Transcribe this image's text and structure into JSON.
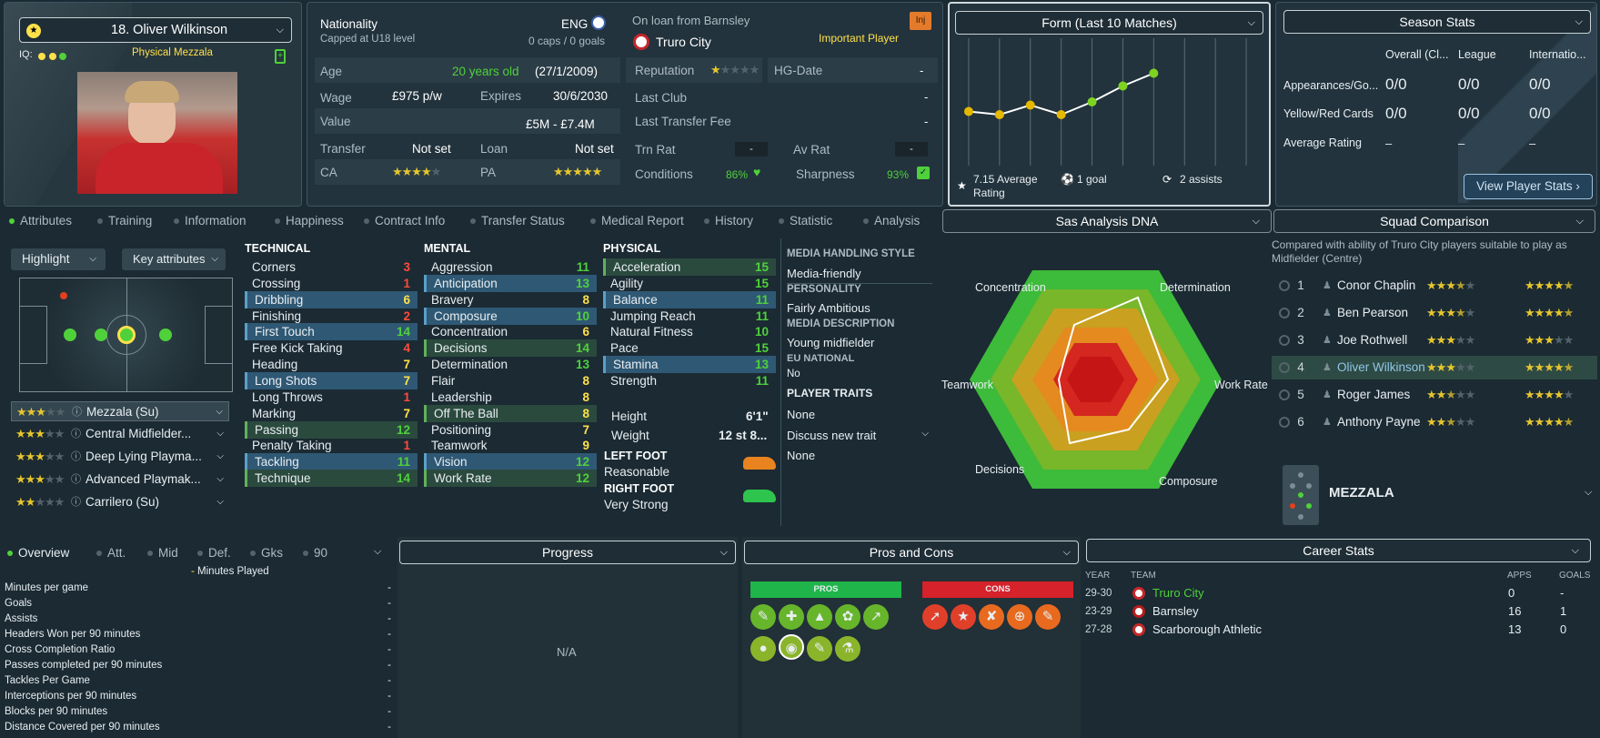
{
  "player": {
    "name": "18. Oliver Wilkinson",
    "iq_label": "IQ:",
    "role_desc": "Physical Mezzala"
  },
  "info": {
    "nationality_label": "Nationality",
    "capped": "Capped at U18 level",
    "nation": "ENG",
    "caps": "0 caps / 0 goals",
    "loan_text": "On loan from Barnsley",
    "inj": "Inj",
    "club": "Truro City",
    "importance": "Important Player",
    "age_label": "Age",
    "age": "20 years old",
    "dob": "(27/1/2009)",
    "reputation_label": "Reputation",
    "hg_label": "HG-Date",
    "hg_val": "-",
    "wage_label": "Wage",
    "wage": "£975 p/w",
    "expires_label": "Expires",
    "expires": "30/6/2030",
    "last_club_label": "Last Club",
    "last_club": "-",
    "value_label": "Value",
    "value": "£5M - £7.4M",
    "last_fee_label": "Last Transfer Fee",
    "last_fee": "-",
    "transfer_label": "Transfer",
    "transfer": "Not set",
    "loan_label": "Loan",
    "loan": "Not set",
    "trn_label": "Trn Rat",
    "trn": "-",
    "av_label": "Av Rat",
    "av": "-",
    "ca_label": "CA",
    "pa_label": "PA",
    "cond_label": "Conditions",
    "cond": "86%",
    "sharp_label": "Sharpness",
    "sharp": "93%"
  },
  "form": {
    "title": "Form (Last 10 Matches)",
    "avg": "7.15 Average Rating",
    "goals": "1 goal",
    "assists": "2 assists",
    "points": [
      6.85,
      6.8,
      6.95,
      6.8,
      7.0,
      7.25,
      7.45
    ]
  },
  "season": {
    "title": "Season Stats",
    "cols": [
      "Overall (Cl...",
      "League",
      "Internatio..."
    ],
    "rows": [
      {
        "label": "Appearances/Go...",
        "vals": [
          "0/0",
          "0/0",
          "0/0"
        ]
      },
      {
        "label": "Yellow/Red Cards",
        "vals": [
          "0/0",
          "0/0",
          "0/0"
        ]
      },
      {
        "label": "Average Rating",
        "vals": [
          "–",
          "–",
          "–"
        ]
      }
    ],
    "button": "View Player Stats"
  },
  "tabs": [
    "Attributes",
    "Training",
    "Information",
    "Happiness",
    "Contract Info",
    "Transfer Status",
    "Medical Report",
    "History",
    "Statistic",
    "Analysis"
  ],
  "left": {
    "highlight": "Highlight",
    "key_attr": "Key attributes",
    "roles": [
      "Mezzala (Su)",
      "Central Midfielder...",
      "Deep Lying Playma...",
      "Advanced Playmak...",
      "Carrilero (Su)"
    ]
  },
  "technical": {
    "title": "TECHNICAL",
    "items": [
      {
        "n": "Corners",
        "v": "3"
      },
      {
        "n": "Crossing",
        "v": "1"
      },
      {
        "n": "Dribbling",
        "v": "6"
      },
      {
        "n": "Finishing",
        "v": "2"
      },
      {
        "n": "First Touch",
        "v": "14"
      },
      {
        "n": "Free Kick Taking",
        "v": "4"
      },
      {
        "n": "Heading",
        "v": "7"
      },
      {
        "n": "Long Shots",
        "v": "7"
      },
      {
        "n": "Long Throws",
        "v": "1"
      },
      {
        "n": "Marking",
        "v": "7"
      },
      {
        "n": "Passing",
        "v": "12"
      },
      {
        "n": "Penalty Taking",
        "v": "1"
      },
      {
        "n": "Tackling",
        "v": "11"
      },
      {
        "n": "Technique",
        "v": "14"
      }
    ]
  },
  "mental": {
    "title": "MENTAL",
    "items": [
      {
        "n": "Aggression",
        "v": "11"
      },
      {
        "n": "Anticipation",
        "v": "13"
      },
      {
        "n": "Bravery",
        "v": "8"
      },
      {
        "n": "Composure",
        "v": "10"
      },
      {
        "n": "Concentration",
        "v": "6"
      },
      {
        "n": "Decisions",
        "v": "14"
      },
      {
        "n": "Determination",
        "v": "13"
      },
      {
        "n": "Flair",
        "v": "8"
      },
      {
        "n": "Leadership",
        "v": "8"
      },
      {
        "n": "Off The Ball",
        "v": "8"
      },
      {
        "n": "Positioning",
        "v": "7"
      },
      {
        "n": "Teamwork",
        "v": "9"
      },
      {
        "n": "Vision",
        "v": "12"
      },
      {
        "n": "Work Rate",
        "v": "12"
      }
    ]
  },
  "physical": {
    "title": "PHYSICAL",
    "items": [
      {
        "n": "Acceleration",
        "v": "15"
      },
      {
        "n": "Agility",
        "v": "15"
      },
      {
        "n": "Balance",
        "v": "11"
      },
      {
        "n": "Jumping Reach",
        "v": "11"
      },
      {
        "n": "Natural Fitness",
        "v": "10"
      },
      {
        "n": "Pace",
        "v": "15"
      },
      {
        "n": "Stamina",
        "v": "13"
      },
      {
        "n": "Strength",
        "v": "11"
      }
    ],
    "height_label": "Height",
    "height": "6'1\"",
    "weight_label": "Weight",
    "weight": "12 st 8...",
    "left_foot_label": "LEFT FOOT",
    "left_foot": "Reasonable",
    "right_foot_label": "RIGHT FOOT",
    "right_foot": "Very Strong"
  },
  "media": {
    "style_title": "MEDIA HANDLING STYLE",
    "style": "Media-friendly",
    "personality_title": "PERSONALITY",
    "personality": "Fairly Ambitious",
    "desc_title": "MEDIA DESCRIPTION",
    "desc": "Young midfielder",
    "eu_title": "EU NATIONAL",
    "eu": "No",
    "traits_title": "PLAYER TRAITS",
    "traits": "None",
    "discuss": "Discuss new trait",
    "discuss_val": "None"
  },
  "dna": {
    "title": "Sas Analysis DNA",
    "labels": {
      "concentration": "Concentration",
      "determination": "Determination",
      "teamwork": "Teamwork",
      "workrate": "Work Rate",
      "decisions": "Decisions",
      "composure": "Composure"
    }
  },
  "squad": {
    "title": "Squad Comparison",
    "desc": "Compared with ability of Truro City players suitable to play as Midfielder (Centre)",
    "players": [
      {
        "rank": "1",
        "name": "Conor Chaplin"
      },
      {
        "rank": "2",
        "name": "Ben Pearson"
      },
      {
        "rank": "3",
        "name": "Joe Rothwell"
      },
      {
        "rank": "4",
        "name": "Oliver Wilkinson"
      },
      {
        "rank": "5",
        "name": "Roger James"
      },
      {
        "rank": "6",
        "name": "Anthony Payne"
      }
    ],
    "role": "MEZZALA"
  },
  "overview": {
    "tabs": [
      "Overview",
      "Att.",
      "Mid",
      "Def.",
      "Gks",
      "90"
    ],
    "legend": "Minutes Played",
    "rows": [
      {
        "n": "Minutes per game",
        "v": "-"
      },
      {
        "n": "Goals",
        "v": "-"
      },
      {
        "n": "Assists",
        "v": "-"
      },
      {
        "n": "Headers Won per 90 minutes",
        "v": "-"
      },
      {
        "n": "Cross Completion Ratio",
        "v": "-"
      },
      {
        "n": "Passes completed per 90 minutes",
        "v": "-"
      },
      {
        "n": "Tackles Per Game",
        "v": "-"
      },
      {
        "n": "Interceptions per 90 minutes",
        "v": "-"
      },
      {
        "n": "Blocks per 90 minutes",
        "v": "-"
      },
      {
        "n": "Distance Covered per 90 minutes",
        "v": "-"
      }
    ]
  },
  "progress": {
    "title": "Progress",
    "na": "N/A"
  },
  "proscons": {
    "title": "Pros and Cons",
    "pros": "PROS",
    "cons": "CONS"
  },
  "career": {
    "title": "Career Stats",
    "headers": {
      "year": "YEAR",
      "team": "TEAM",
      "apps": "APPS",
      "goals": "GOALS"
    },
    "rows": [
      {
        "year": "29-30",
        "team": "Truro City",
        "apps": "0",
        "goals": "-"
      },
      {
        "year": "23-29",
        "team": "Barnsley",
        "apps": "16",
        "goals": "1"
      },
      {
        "year": "27-28",
        "team": "Scarborough Athletic",
        "apps": "13",
        "goals": "0"
      }
    ]
  },
  "colors": {
    "accent_green": "#4fd13a",
    "accent_yellow": "#ffe14a",
    "bad_red": "#ff4b3a",
    "bg": "#1b2a33"
  }
}
